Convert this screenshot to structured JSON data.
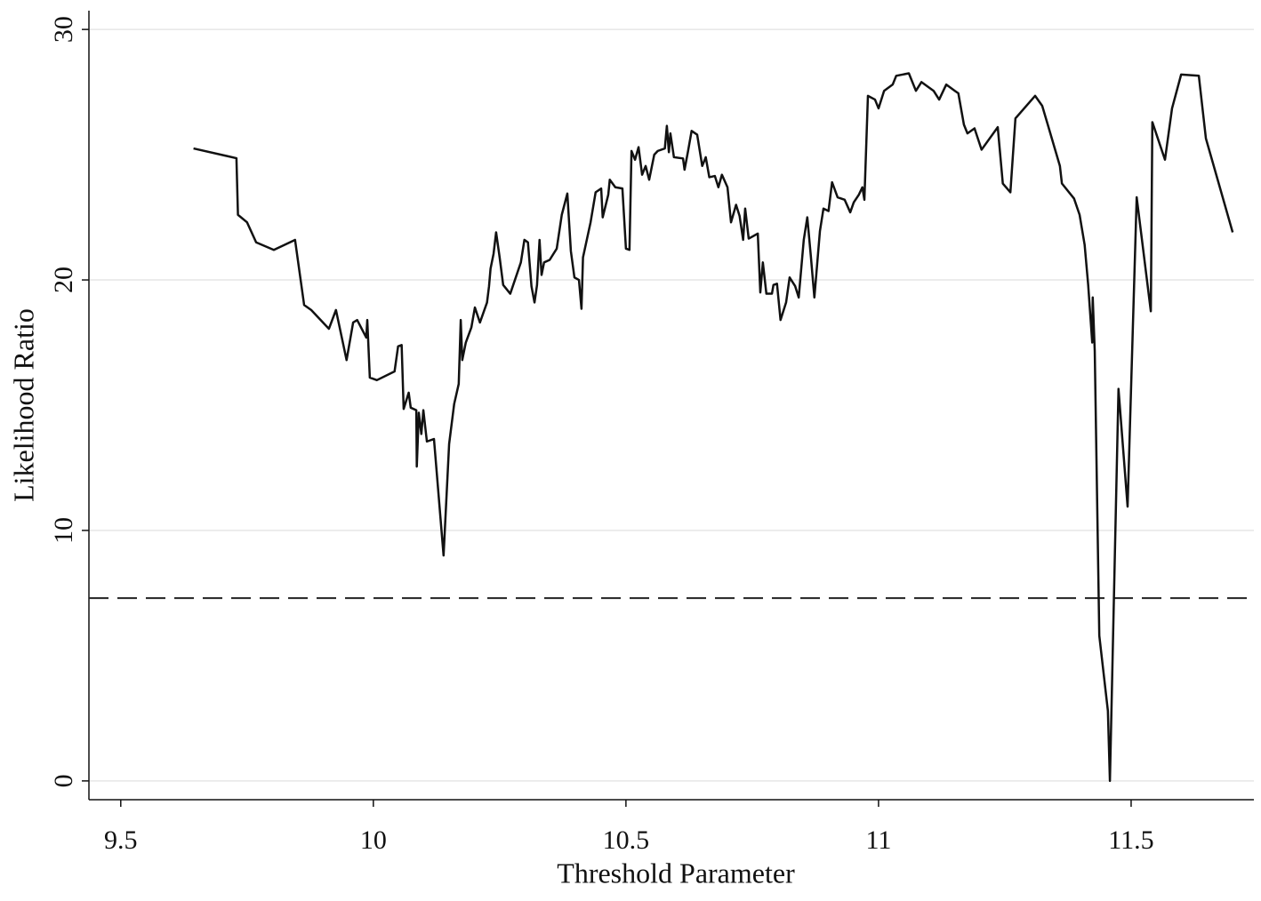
{
  "chart_data": {
    "type": "line",
    "x_label": "Threshold Parameter",
    "y_label": "Likelihood Ratio",
    "x": [
      9.644,
      9.729,
      9.732,
      9.75,
      9.768,
      9.803,
      9.845,
      9.863,
      9.877,
      9.912,
      9.926,
      9.947,
      9.96,
      9.968,
      9.986,
      9.988,
      9.993,
      10.007,
      10.042,
      10.049,
      10.056,
      10.06,
      10.07,
      10.074,
      10.085,
      10.086,
      10.09,
      10.095,
      10.099,
      10.104,
      10.106,
      10.12,
      10.139,
      10.15,
      10.16,
      10.169,
      10.173,
      10.176,
      10.183,
      10.194,
      10.201,
      10.211,
      10.225,
      10.229,
      10.232,
      10.238,
      10.243,
      10.25,
      10.257,
      10.271,
      10.292,
      10.299,
      10.306,
      10.313,
      10.319,
      10.324,
      10.329,
      10.333,
      10.338,
      10.349,
      10.363,
      10.373,
      10.384,
      10.391,
      10.398,
      10.407,
      10.412,
      10.415,
      10.43,
      10.44,
      10.451,
      10.454,
      10.465,
      10.468,
      10.479,
      10.493,
      10.5,
      10.507,
      10.511,
      10.518,
      10.525,
      10.532,
      10.539,
      10.546,
      10.556,
      10.563,
      10.577,
      10.581,
      10.585,
      10.588,
      10.595,
      10.613,
      10.616,
      10.623,
      10.63,
      10.641,
      10.651,
      10.658,
      10.665,
      10.676,
      10.683,
      10.69,
      10.701,
      10.708,
      10.718,
      10.725,
      10.732,
      10.736,
      10.743,
      10.761,
      10.766,
      10.771,
      10.778,
      10.789,
      10.792,
      10.799,
      10.806,
      10.817,
      10.824,
      10.835,
      10.842,
      10.852,
      10.859,
      10.866,
      10.873,
      10.884,
      10.891,
      10.901,
      10.908,
      10.919,
      10.933,
      10.944,
      10.951,
      10.961,
      10.968,
      10.972,
      10.979,
      10.993,
      11.0,
      11.011,
      11.028,
      11.035,
      11.06,
      11.074,
      11.085,
      11.109,
      11.12,
      11.134,
      11.151,
      11.158,
      11.169,
      11.176,
      11.19,
      11.204,
      11.236,
      11.246,
      11.261,
      11.271,
      11.31,
      11.324,
      11.335,
      11.359,
      11.363,
      11.387,
      11.398,
      11.408,
      11.415,
      11.423,
      11.424,
      11.428,
      11.437,
      11.454,
      11.458,
      11.475,
      11.493,
      11.511,
      11.539,
      11.542,
      11.567,
      11.581,
      11.599,
      11.634,
      11.648,
      11.701
    ],
    "values": [
      25.25,
      24.86,
      22.6,
      22.3,
      21.5,
      21.2,
      21.6,
      19.0,
      18.8,
      18.05,
      18.8,
      16.8,
      18.3,
      18.4,
      17.7,
      18.4,
      16.1,
      16.0,
      16.35,
      17.35,
      17.4,
      14.85,
      15.5,
      14.9,
      14.8,
      12.55,
      14.7,
      13.85,
      14.8,
      13.9,
      13.55,
      13.65,
      9.0,
      13.45,
      15.05,
      15.85,
      18.4,
      16.8,
      17.5,
      18.1,
      18.9,
      18.3,
      19.1,
      19.75,
      20.45,
      21.05,
      21.9,
      20.9,
      19.8,
      19.45,
      20.7,
      21.6,
      21.5,
      19.75,
      19.1,
      19.8,
      21.6,
      20.2,
      20.7,
      20.8,
      21.25,
      22.6,
      23.45,
      21.15,
      20.1,
      20.0,
      18.85,
      20.9,
      22.3,
      23.5,
      23.65,
      22.5,
      23.4,
      24.0,
      23.7,
      23.65,
      21.25,
      21.2,
      25.15,
      24.8,
      25.3,
      24.2,
      24.55,
      24.0,
      25.0,
      25.15,
      25.25,
      26.15,
      25.1,
      25.85,
      24.9,
      24.85,
      24.4,
      25.15,
      25.95,
      25.8,
      24.55,
      24.9,
      24.1,
      24.15,
      23.7,
      24.2,
      23.7,
      22.3,
      23.0,
      22.55,
      21.6,
      22.85,
      21.65,
      21.85,
      19.5,
      20.7,
      19.45,
      19.45,
      19.8,
      19.85,
      18.4,
      19.1,
      20.1,
      19.75,
      19.3,
      21.6,
      22.5,
      20.95,
      19.3,
      21.95,
      22.85,
      22.75,
      23.9,
      23.3,
      23.2,
      22.7,
      23.1,
      23.4,
      23.7,
      23.2,
      27.35,
      27.2,
      26.85,
      27.55,
      27.8,
      28.15,
      28.25,
      27.55,
      27.9,
      27.55,
      27.2,
      27.8,
      27.55,
      27.45,
      26.2,
      25.85,
      26.05,
      25.2,
      26.1,
      23.85,
      23.5,
      26.45,
      27.35,
      26.95,
      26.2,
      24.55,
      23.85,
      23.25,
      22.6,
      21.4,
      19.8,
      17.5,
      19.3,
      17.15,
      5.8,
      2.8,
      0.0,
      15.65,
      10.95,
      23.3,
      18.75,
      26.3,
      24.8,
      26.85,
      28.2,
      28.15,
      25.65,
      21.9
    ],
    "color": "#111111",
    "reference_line": 7.3,
    "xlim": [
      9.437,
      11.743
    ],
    "ylim": [
      -0.75,
      30.75
    ],
    "xticks": [
      9.5,
      10,
      10.5,
      11,
      11.5
    ],
    "yticks": [
      0,
      10,
      20,
      30
    ],
    "grid": true
  }
}
